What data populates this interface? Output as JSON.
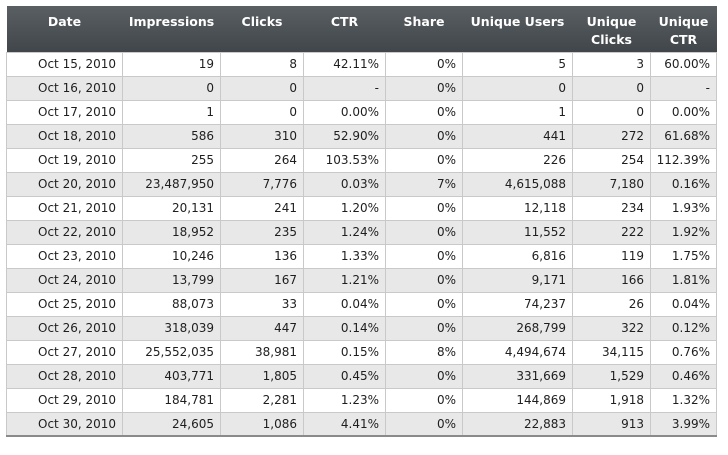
{
  "table": {
    "columns": [
      "Date",
      "Impressions",
      "Clicks",
      "CTR",
      "Share",
      "Unique Users",
      "Unique Clicks",
      "Unique CTR"
    ],
    "rows": [
      [
        "Oct 15, 2010",
        "19",
        "8",
        "42.11%",
        "0%",
        "5",
        "3",
        "60.00%"
      ],
      [
        "Oct 16, 2010",
        "0",
        "0",
        "-",
        "0%",
        "0",
        "0",
        "-"
      ],
      [
        "Oct 17, 2010",
        "1",
        "0",
        "0.00%",
        "0%",
        "1",
        "0",
        "0.00%"
      ],
      [
        "Oct 18, 2010",
        "586",
        "310",
        "52.90%",
        "0%",
        "441",
        "272",
        "61.68%"
      ],
      [
        "Oct 19, 2010",
        "255",
        "264",
        "103.53%",
        "0%",
        "226",
        "254",
        "112.39%"
      ],
      [
        "Oct 20, 2010",
        "23,487,950",
        "7,776",
        "0.03%",
        "7%",
        "4,615,088",
        "7,180",
        "0.16%"
      ],
      [
        "Oct 21, 2010",
        "20,131",
        "241",
        "1.20%",
        "0%",
        "12,118",
        "234",
        "1.93%"
      ],
      [
        "Oct 22, 2010",
        "18,952",
        "235",
        "1.24%",
        "0%",
        "11,552",
        "222",
        "1.92%"
      ],
      [
        "Oct 23, 2010",
        "10,246",
        "136",
        "1.33%",
        "0%",
        "6,816",
        "119",
        "1.75%"
      ],
      [
        "Oct 24, 2010",
        "13,799",
        "167",
        "1.21%",
        "0%",
        "9,171",
        "166",
        "1.81%"
      ],
      [
        "Oct 25, 2010",
        "88,073",
        "33",
        "0.04%",
        "0%",
        "74,237",
        "26",
        "0.04%"
      ],
      [
        "Oct 26, 2010",
        "318,039",
        "447",
        "0.14%",
        "0%",
        "268,799",
        "322",
        "0.12%"
      ],
      [
        "Oct 27, 2010",
        "25,552,035",
        "38,981",
        "0.15%",
        "8%",
        "4,494,674",
        "34,115",
        "0.76%"
      ],
      [
        "Oct 28, 2010",
        "403,771",
        "1,805",
        "0.45%",
        "0%",
        "331,669",
        "1,529",
        "0.46%"
      ],
      [
        "Oct 29, 2010",
        "184,781",
        "2,281",
        "1.23%",
        "0%",
        "144,869",
        "1,918",
        "1.32%"
      ],
      [
        "Oct 30, 2010",
        "24,605",
        "1,086",
        "4.41%",
        "0%",
        "22,883",
        "913",
        "3.99%"
      ]
    ]
  },
  "colors": {
    "header_bg": "#4b5054",
    "header_text": "#ffffff",
    "row_alt_bg": "#e8e8e8",
    "row_bg": "#ffffff",
    "grid": "#c9c9c9"
  }
}
